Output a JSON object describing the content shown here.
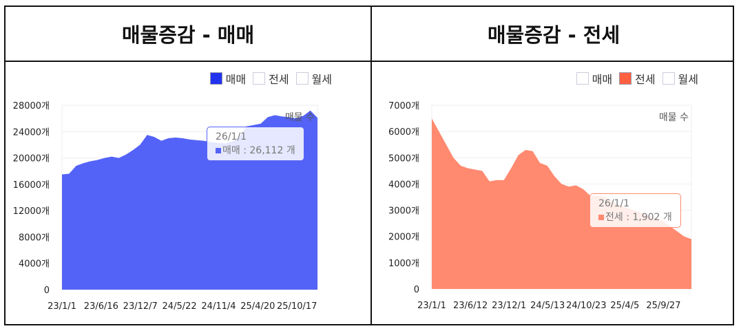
{
  "left": {
    "title": "매물증감 - 매매",
    "legend": [
      "매매",
      "전세",
      "월세"
    ],
    "active": 0,
    "color": "#5463f7",
    "legend_color": "#2233ee",
    "series_label": "매물 수",
    "tooltip": {
      "date": "26/1/1",
      "text": "매매 : 26,112 개"
    }
  },
  "right": {
    "title": "매물증감 - 전세",
    "legend": [
      "매매",
      "전세",
      "월세"
    ],
    "active": 1,
    "color": "#ff8a70",
    "legend_color": "#ff6040",
    "series_label": "매물 수",
    "tooltip": {
      "date": "26/1/1",
      "text": "전세 : 1,902 개"
    }
  },
  "chart_data": [
    {
      "type": "area",
      "title": "매물증감 - 매매",
      "series": [
        {
          "name": "매매",
          "values": [
            17500,
            17600,
            18800,
            19200,
            19500,
            19700,
            20000,
            20200,
            20000,
            20500,
            21200,
            22000,
            23500,
            23200,
            22600,
            23000,
            23100,
            23000,
            22800,
            22700,
            22600,
            22400,
            22300,
            22200,
            22500,
            23200,
            24800,
            25000,
            25200,
            26200,
            26500,
            26300,
            26200,
            26000,
            26400,
            27200,
            26112
          ]
        }
      ],
      "x_range": [
        "23/1/1",
        "26/1/1"
      ],
      "ylim": [
        0,
        28000
      ],
      "yticks": [
        "0",
        "4000개",
        "8000개",
        "12000개",
        "16000개",
        "20000개",
        "24000개",
        "28000개"
      ],
      "xticks": [
        "23/1/1",
        "23/6/16",
        "23/12/7",
        "24/5/22",
        "24/11/4",
        "25/4/20",
        "25/10/17"
      ],
      "x_tick_step_days": 168
    },
    {
      "type": "area",
      "title": "매물증감 - 전세",
      "series": [
        {
          "name": "전세",
          "values": [
            6500,
            6000,
            5500,
            5000,
            4700,
            4600,
            4550,
            4500,
            4100,
            4150,
            4150,
            4600,
            5100,
            5300,
            5250,
            4800,
            4700,
            4300,
            4000,
            3900,
            3950,
            3800,
            3550,
            3550,
            3500,
            3350,
            3200,
            3100,
            3000,
            2900,
            2800,
            2700,
            2600,
            2400,
            2200,
            2000,
            1902
          ]
        }
      ],
      "x_range": [
        "23/1/1",
        "26/1/1"
      ],
      "ylim": [
        0,
        7000
      ],
      "yticks": [
        "0",
        "1000개",
        "2000개",
        "3000개",
        "4000개",
        "5000개",
        "6000개",
        "7000개"
      ],
      "xticks": [
        "23/1/1",
        "23/6/12",
        "23/12/1",
        "24/5/13",
        "24/10/23",
        "25/4/5",
        "25/9/27"
      ],
      "x_tick_step_days": 163
    }
  ]
}
